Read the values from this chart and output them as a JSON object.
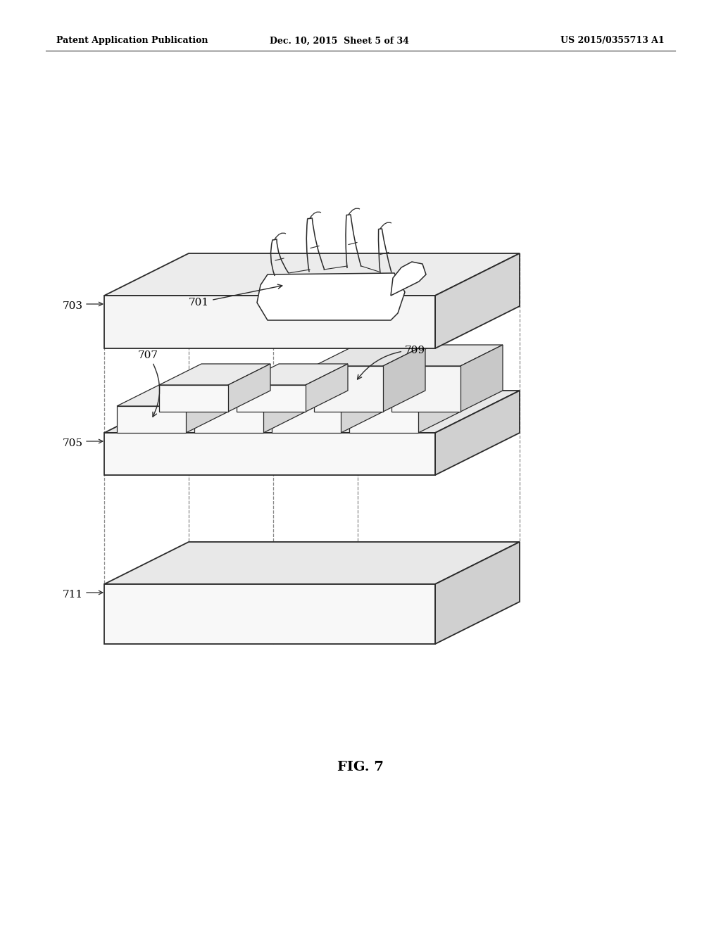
{
  "header_left": "Patent Application Publication",
  "header_mid": "Dec. 10, 2015  Sheet 5 of 34",
  "header_right": "US 2015/0355713 A1",
  "fig_label": "FIG. 7",
  "background_color": "#ffffff",
  "line_color": "#2a2a2a",
  "light_fill": "#f8f8f8",
  "mid_fill": "#e8e8e8",
  "dark_fill": "#d0d0d0",
  "dashed_color": "#888888",
  "label_fontsize": 11,
  "header_fontsize": 9,
  "fig_fontsize": 14
}
